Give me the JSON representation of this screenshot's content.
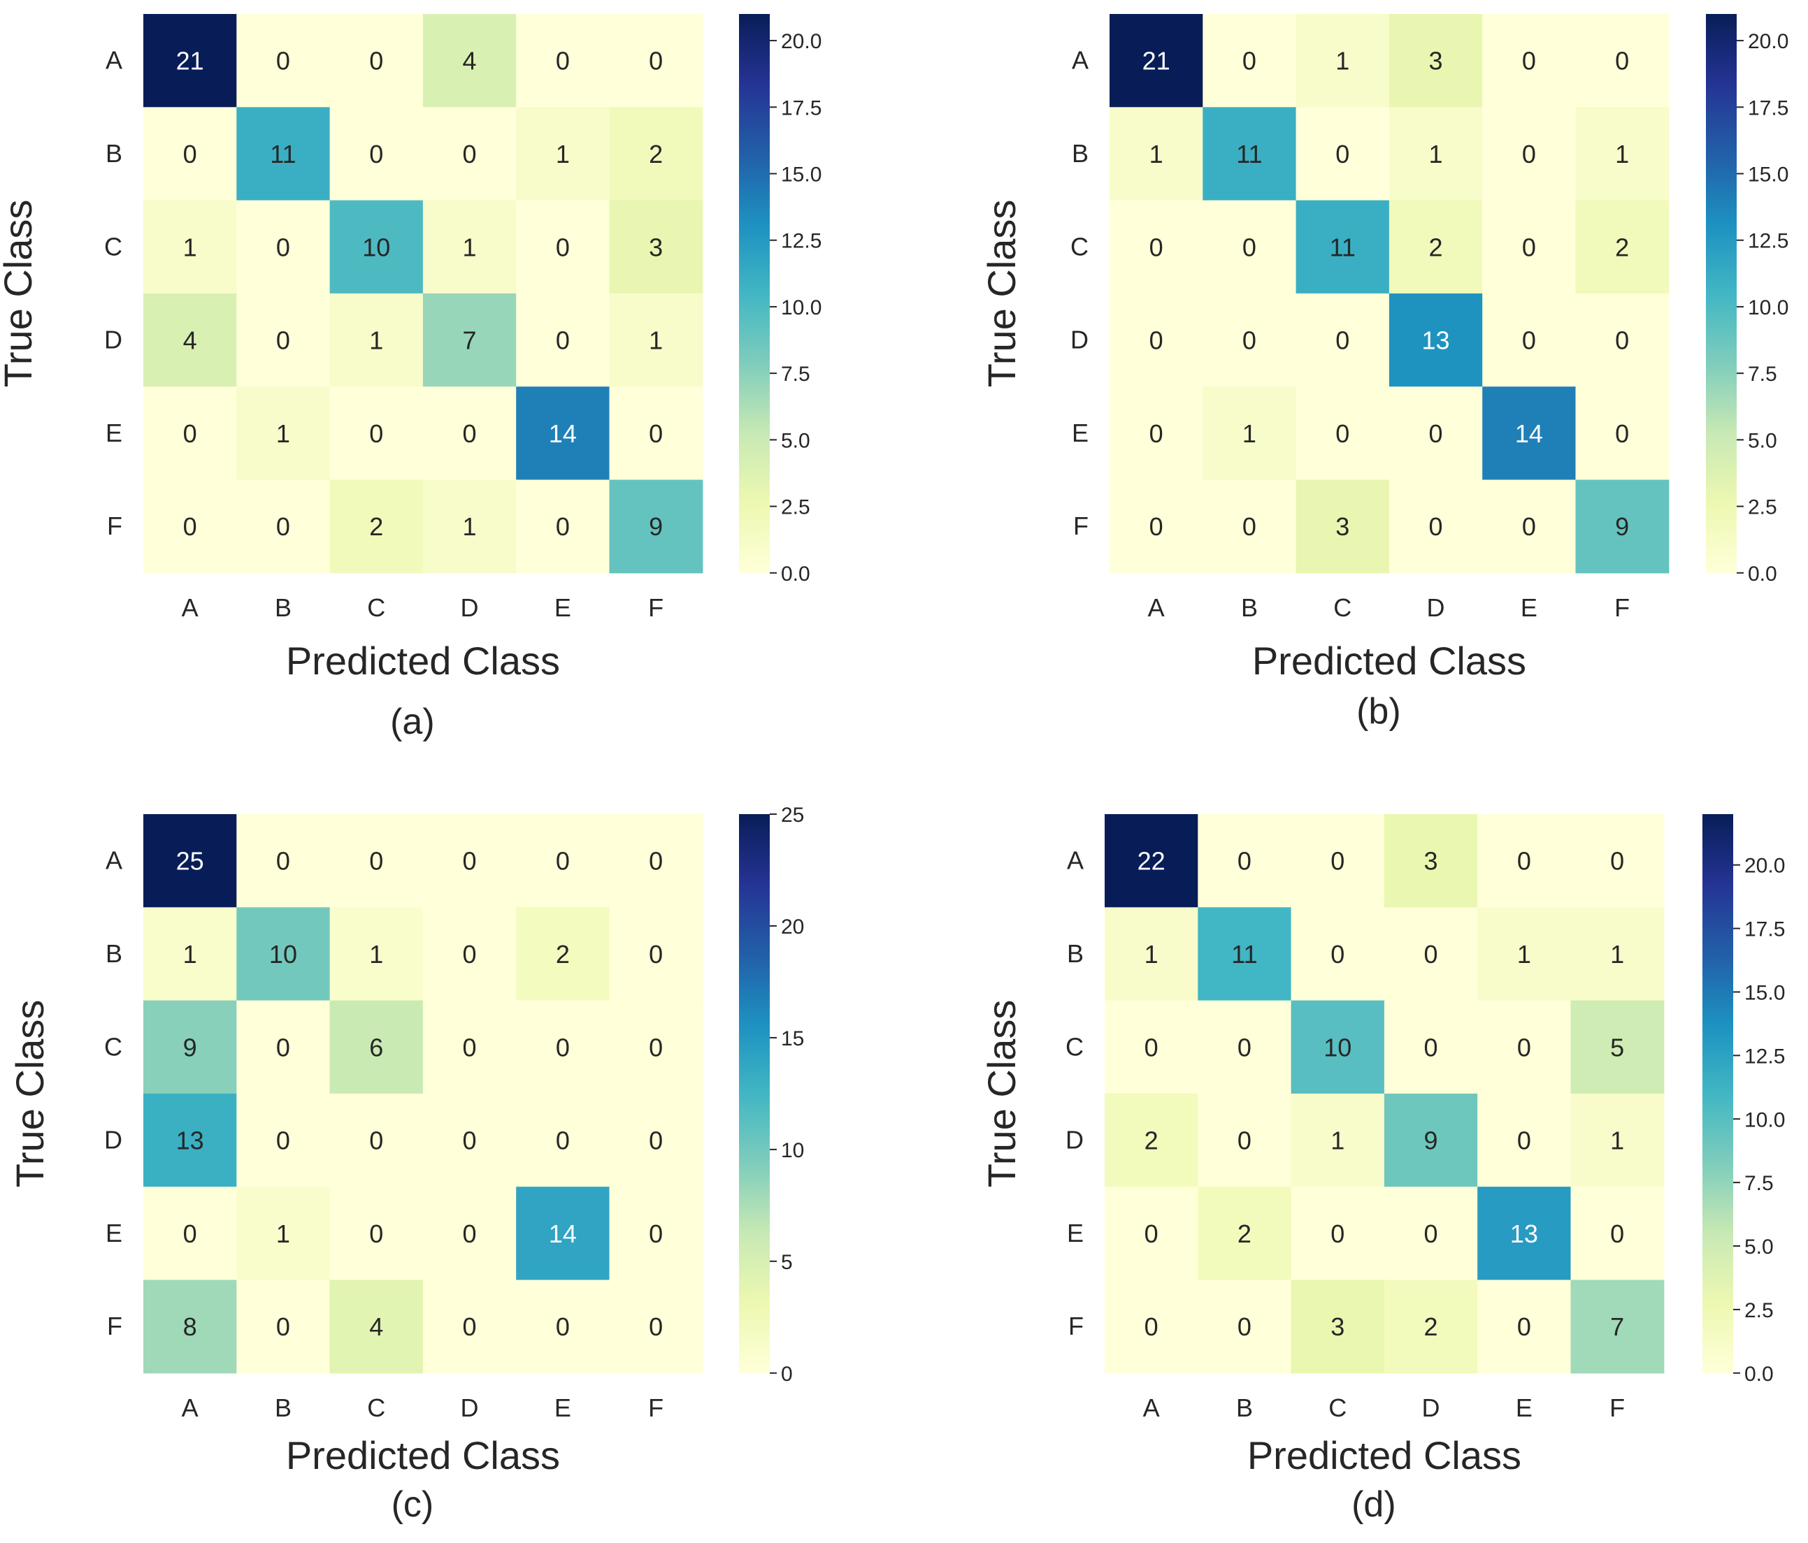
{
  "figure": {
    "title": ""
  },
  "colorscale": {
    "name": "YlGnBu",
    "stops": [
      "#ffffd9",
      "#edf8b1",
      "#c7e9b4",
      "#7fcdbb",
      "#41b6c4",
      "#1d91c0",
      "#225ea8",
      "#253494",
      "#081d58"
    ],
    "light_text": "#ffffff",
    "dark_text": "#262626"
  },
  "chart_data": [
    {
      "type": "heatmap",
      "panel_label": "(a)",
      "xlabel": "Predicted Class",
      "ylabel": "True Class",
      "x_categories": [
        "A",
        "B",
        "C",
        "D",
        "E",
        "F"
      ],
      "y_categories": [
        "A",
        "B",
        "C",
        "D",
        "E",
        "F"
      ],
      "values": [
        [
          21,
          0,
          0,
          4,
          0,
          0
        ],
        [
          0,
          11,
          0,
          0,
          1,
          2
        ],
        [
          1,
          0,
          10,
          1,
          0,
          3
        ],
        [
          4,
          0,
          1,
          7,
          0,
          1
        ],
        [
          0,
          1,
          0,
          0,
          14,
          0
        ],
        [
          0,
          0,
          2,
          1,
          0,
          9
        ]
      ],
      "colorbar": {
        "vmin": 0,
        "vmax": 21,
        "ticks": [
          0,
          2.5,
          5,
          7.5,
          10,
          12.5,
          15,
          17.5,
          20
        ],
        "tick_labels": [
          "0.0",
          "2.5",
          "5.0",
          "7.5",
          "10.0",
          "12.5",
          "15.0",
          "17.5",
          "20.0"
        ]
      }
    },
    {
      "type": "heatmap",
      "panel_label": "(b)",
      "xlabel": "Predicted Class",
      "ylabel": "True Class",
      "x_categories": [
        "A",
        "B",
        "C",
        "D",
        "E",
        "F"
      ],
      "y_categories": [
        "A",
        "B",
        "C",
        "D",
        "E",
        "F"
      ],
      "values": [
        [
          21,
          0,
          1,
          3,
          0,
          0
        ],
        [
          1,
          11,
          0,
          1,
          0,
          1
        ],
        [
          0,
          0,
          11,
          2,
          0,
          2
        ],
        [
          0,
          0,
          0,
          13,
          0,
          0
        ],
        [
          0,
          1,
          0,
          0,
          14,
          0
        ],
        [
          0,
          0,
          3,
          0,
          0,
          9
        ]
      ],
      "colorbar": {
        "vmin": 0,
        "vmax": 21,
        "ticks": [
          0,
          2.5,
          5,
          7.5,
          10,
          12.5,
          15,
          17.5,
          20
        ],
        "tick_labels": [
          "0.0",
          "2.5",
          "5.0",
          "7.5",
          "10.0",
          "12.5",
          "15.0",
          "17.5",
          "20.0"
        ]
      }
    },
    {
      "type": "heatmap",
      "panel_label": "(c)",
      "xlabel": "Predicted Class",
      "ylabel": "True Class",
      "x_categories": [
        "A",
        "B",
        "C",
        "D",
        "E",
        "F"
      ],
      "y_categories": [
        "A",
        "B",
        "C",
        "D",
        "E",
        "F"
      ],
      "values": [
        [
          25,
          0,
          0,
          0,
          0,
          0
        ],
        [
          1,
          10,
          1,
          0,
          2,
          0
        ],
        [
          9,
          0,
          6,
          0,
          0,
          0
        ],
        [
          13,
          0,
          0,
          0,
          0,
          0
        ],
        [
          0,
          1,
          0,
          0,
          14,
          0
        ],
        [
          8,
          0,
          4,
          0,
          0,
          0
        ]
      ],
      "colorbar": {
        "vmin": 0,
        "vmax": 25,
        "ticks": [
          0,
          5,
          10,
          15,
          20,
          25
        ],
        "tick_labels": [
          "0",
          "5",
          "10",
          "15",
          "20",
          "25"
        ]
      }
    },
    {
      "type": "heatmap",
      "panel_label": "(d)",
      "xlabel": "Predicted Class",
      "ylabel": "True Class",
      "x_categories": [
        "A",
        "B",
        "C",
        "D",
        "E",
        "F"
      ],
      "y_categories": [
        "A",
        "B",
        "C",
        "D",
        "E",
        "F"
      ],
      "values": [
        [
          22,
          0,
          0,
          3,
          0,
          0
        ],
        [
          1,
          11,
          0,
          0,
          1,
          1
        ],
        [
          0,
          0,
          10,
          0,
          0,
          5
        ],
        [
          2,
          0,
          1,
          9,
          0,
          1
        ],
        [
          0,
          2,
          0,
          0,
          13,
          0
        ],
        [
          0,
          0,
          3,
          2,
          0,
          7
        ]
      ],
      "colorbar": {
        "vmin": 0,
        "vmax": 22,
        "ticks": [
          0,
          2.5,
          5,
          7.5,
          10,
          12.5,
          15,
          17.5,
          20
        ],
        "tick_labels": [
          "0.0",
          "2.5",
          "5.0",
          "7.5",
          "10.0",
          "12.5",
          "15.0",
          "17.5",
          "20.0"
        ]
      }
    }
  ]
}
